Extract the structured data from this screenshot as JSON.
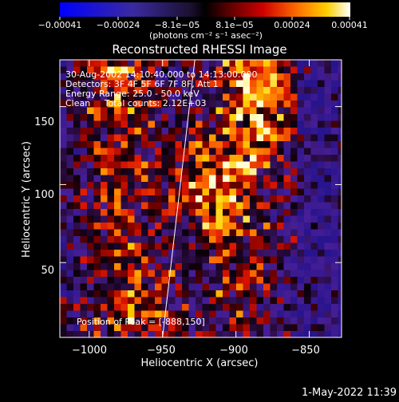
{
  "chart_data": {
    "type": "heatmap",
    "title": "Reconstructed RHESSI Image",
    "xlabel": "Heliocentric X (arcsec)",
    "ylabel": "Heliocentric Y (arcsec)",
    "xlim": [
      -1020,
      -828
    ],
    "ylim": [
      2,
      180
    ],
    "xticks": [
      -1000,
      -950,
      -900,
      -850
    ],
    "yticks": [
      50,
      100,
      150
    ],
    "xtick_labels": [
      "−1000",
      "−950",
      "−900",
      "−850"
    ],
    "ytick_labels": [
      "50",
      "100",
      "150"
    ],
    "colorbar": {
      "ticks": [
        -0.00041,
        -0.00024,
        -8.1e-05,
        8.1e-05,
        0.00024,
        0.00041
      ],
      "tick_labels": [
        "−0.00041",
        "−0.00024",
        "−8.1e−05",
        "8.1e−05",
        "0.00024",
        "0.00041"
      ],
      "unit_label": "(photons cm⁻² s⁻¹ asec⁻²)"
    },
    "annotations": [
      "30-Aug-2002 14:10:40.000 to 14:13:00.000",
      "Detectors: 3F 4F 5F 6F 7F 8F, Att 1",
      "Energy Range: 25.0 - 50.0 keV",
      "Clean     Total counts: 2.12E+03"
    ],
    "peak_label": "Position of Peak = [-888,150]",
    "peak_position": [
      -888,
      150
    ],
    "limb_line": {
      "x1": -950,
      "y1": 2,
      "x2": -928,
      "y2": 180
    },
    "grid": false
  },
  "footer": {
    "timestamp": "1-May-2022 11:39"
  }
}
